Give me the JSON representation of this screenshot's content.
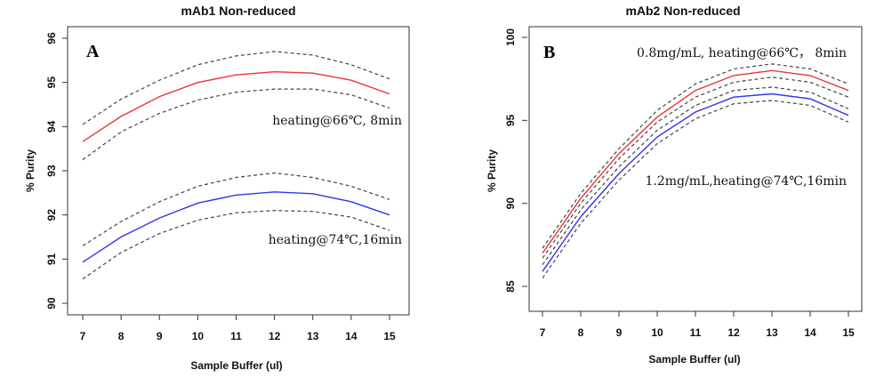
{
  "chart_data": [
    {
      "type": "line",
      "title": "mAb1 Non-reduced",
      "panel_label": "A",
      "xlabel": "Sample Buffer (ul)",
      "ylabel": "% Purity",
      "xlim": [
        7,
        15
      ],
      "ylim": [
        90,
        96
      ],
      "x_ticks": [
        7,
        8,
        9,
        10,
        11,
        12,
        13,
        14,
        15
      ],
      "y_ticks": [
        90,
        91,
        92,
        93,
        94,
        95,
        96
      ],
      "x": [
        7,
        8,
        9,
        10,
        11,
        12,
        13,
        14,
        15
      ],
      "series": [
        {
          "color": "#ee3333",
          "style": "solid",
          "values": [
            93.66,
            94.23,
            94.68,
            95.0,
            95.17,
            95.24,
            95.21,
            95.05,
            94.74
          ]
        },
        {
          "color": "#444444",
          "style": "dashed",
          "values": [
            94.05,
            94.62,
            95.05,
            95.4,
            95.6,
            95.7,
            95.62,
            95.4,
            95.08
          ]
        },
        {
          "color": "#444444",
          "style": "dashed",
          "values": [
            93.25,
            93.88,
            94.3,
            94.6,
            94.78,
            94.85,
            94.85,
            94.72,
            94.42
          ]
        },
        {
          "color": "#3333ee",
          "style": "solid",
          "values": [
            90.93,
            91.5,
            91.93,
            92.27,
            92.45,
            92.52,
            92.48,
            92.3,
            92.0
          ]
        },
        {
          "color": "#444444",
          "style": "dashed",
          "values": [
            91.3,
            91.85,
            92.3,
            92.65,
            92.85,
            92.95,
            92.85,
            92.65,
            92.35
          ]
        },
        {
          "color": "#444444",
          "style": "dashed",
          "values": [
            90.55,
            91.15,
            91.58,
            91.88,
            92.05,
            92.1,
            92.08,
            91.95,
            91.65
          ]
        }
      ],
      "annotations": [
        {
          "text": "heating@66℃, 8min",
          "x": 13.5,
          "y": 94.0
        },
        {
          "text": "heating@74℃,16min",
          "x": 13.5,
          "y": 91.3
        }
      ]
    },
    {
      "type": "line",
      "title": "mAb2 Non-reduced",
      "panel_label": "B",
      "xlabel": "Sample Buffer (ul)",
      "ylabel": "% Purity",
      "xlim": [
        7,
        15
      ],
      "ylim": [
        84,
        100
      ],
      "x_ticks": [
        7,
        8,
        9,
        10,
        11,
        12,
        13,
        14,
        15
      ],
      "y_ticks": [
        85,
        90,
        95,
        100
      ],
      "x": [
        7,
        8,
        9,
        10,
        11,
        12,
        13,
        14,
        15
      ],
      "series": [
        {
          "color": "#ee3333",
          "style": "solid",
          "values": [
            87.0,
            90.3,
            93.0,
            95.2,
            96.8,
            97.7,
            98.0,
            97.7,
            96.8
          ]
        },
        {
          "color": "#444444",
          "style": "dashed",
          "values": [
            87.3,
            90.6,
            93.3,
            95.6,
            97.2,
            98.1,
            98.4,
            98.1,
            97.2
          ]
        },
        {
          "color": "#444444",
          "style": "dashed",
          "values": [
            86.7,
            90.0,
            92.7,
            94.9,
            96.4,
            97.3,
            97.6,
            97.3,
            96.4
          ]
        },
        {
          "color": "#3333ee",
          "style": "solid",
          "values": [
            85.9,
            89.2,
            91.8,
            94.0,
            95.5,
            96.4,
            96.6,
            96.3,
            95.3
          ]
        },
        {
          "color": "#444444",
          "style": "dashed",
          "values": [
            86.3,
            89.6,
            92.2,
            94.4,
            95.9,
            96.8,
            97.0,
            96.7,
            95.7
          ]
        },
        {
          "color": "#444444",
          "style": "dashed",
          "values": [
            85.5,
            88.8,
            91.4,
            93.6,
            95.1,
            96.0,
            96.2,
            95.9,
            94.9
          ]
        }
      ],
      "annotations": [
        {
          "text": "0.8mg/mL, heating@66℃， 8min",
          "x": 11.0,
          "y": 98.9
        },
        {
          "text": "1.2mg/mL,heating@74℃,16min",
          "x": 11.3,
          "y": 93.5
        }
      ]
    }
  ]
}
